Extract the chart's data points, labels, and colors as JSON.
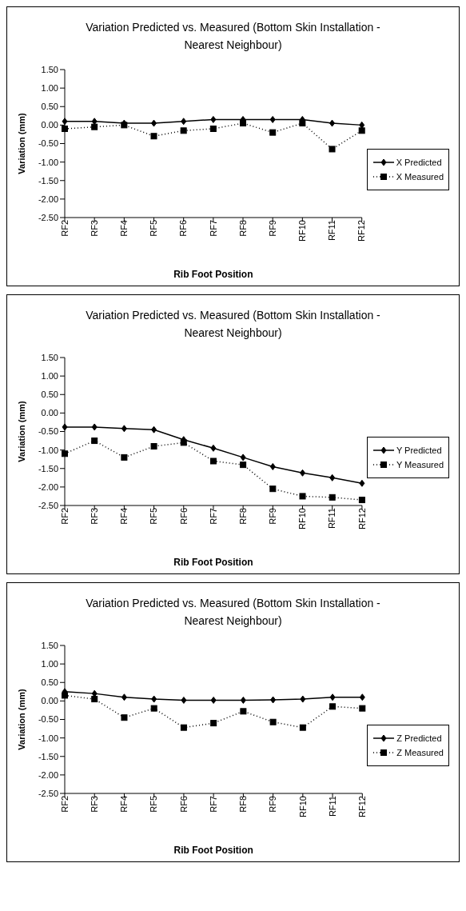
{
  "chart_data": [
    {
      "type": "line",
      "title": "Variation Predicted vs. Measured (Bottom Skin Installation - Nearest Neighbour)",
      "xlabel": "Rib Foot Position",
      "ylabel": "Variation (mm)",
      "categories": [
        "RF2",
        "RF3",
        "RF4",
        "RF5",
        "RF6",
        "RF7",
        "RF8",
        "RF9",
        "RF10",
        "RF11",
        "RF12"
      ],
      "series": [
        {
          "name": "X Predicted",
          "color": "#000000",
          "marker": "diamond",
          "line_style": "solid",
          "values": [
            0.1,
            0.1,
            0.05,
            0.05,
            0.1,
            0.15,
            0.15,
            0.15,
            0.15,
            0.05,
            0.0
          ]
        },
        {
          "name": "X Measured",
          "color": "#000000",
          "marker": "square",
          "line_style": "dotted",
          "values": [
            -0.1,
            -0.05,
            0.0,
            -0.3,
            -0.15,
            -0.1,
            0.05,
            -0.2,
            0.05,
            -0.65,
            -0.15
          ]
        }
      ],
      "ylim": [
        -2.5,
        1.5
      ],
      "yticks": [
        {
          "value": -2.5,
          "label": "-2.50"
        },
        {
          "value": -2,
          "label": "-2.00"
        },
        {
          "value": -1.5,
          "label": "-1.50"
        },
        {
          "value": -1,
          "label": "-1.00"
        },
        {
          "value": -0.5,
          "label": "-0.50"
        },
        {
          "value": 0,
          "label": "0.00"
        },
        {
          "value": 0.5,
          "label": "0.50"
        },
        {
          "value": 1,
          "label": "1.00"
        },
        {
          "value": 1.5,
          "label": "1.50"
        }
      ],
      "grid": false,
      "legend": "right"
    },
    {
      "type": "line",
      "title": "Variation Predicted vs. Measured (Bottom Skin Installation - Nearest Neighbour)",
      "xlabel": "Rib Foot Position",
      "ylabel": "Variation (mm)",
      "categories": [
        "RF2",
        "RF3",
        "RF4",
        "RF5",
        "RF6",
        "RF7",
        "RF8",
        "RF9",
        "RF10",
        "RF11",
        "RF12"
      ],
      "series": [
        {
          "name": "Y Predicted",
          "color": "#000000",
          "marker": "diamond",
          "line_style": "solid",
          "values": [
            -0.38,
            -0.38,
            -0.42,
            -0.45,
            -0.72,
            -0.95,
            -1.2,
            -1.45,
            -1.62,
            -1.75,
            -1.9
          ]
        },
        {
          "name": "Y Measured",
          "color": "#000000",
          "marker": "square",
          "line_style": "dotted",
          "values": [
            -1.1,
            -0.75,
            -1.2,
            -0.9,
            -0.8,
            -1.3,
            -1.4,
            -2.05,
            -2.25,
            -2.28,
            -2.35
          ]
        }
      ],
      "ylim": [
        -2.5,
        1.5
      ],
      "yticks": [
        {
          "value": -2.5,
          "label": "-2.50"
        },
        {
          "value": -2,
          "label": "-2.00"
        },
        {
          "value": -1.5,
          "label": "-1.50"
        },
        {
          "value": -1,
          "label": "-1.00"
        },
        {
          "value": -0.5,
          "label": "-0.50"
        },
        {
          "value": 0,
          "label": "0.00"
        },
        {
          "value": 0.5,
          "label": "0.50"
        },
        {
          "value": 1,
          "label": "1.00"
        },
        {
          "value": 1.5,
          "label": "1.50"
        }
      ],
      "grid": false,
      "legend": "right"
    },
    {
      "type": "line",
      "title": "Variation Predicted vs. Measured (Bottom Skin Installation - Nearest Neighbour)",
      "xlabel": "Rib Foot Position",
      "ylabel": "Variation (mm)",
      "categories": [
        "RF2",
        "RF3",
        "RF4",
        "RF5",
        "RF6",
        "RF7",
        "RF8",
        "RF9",
        "RF10",
        "RF11",
        "RF12"
      ],
      "series": [
        {
          "name": "Z Predicted",
          "color": "#000000",
          "marker": "diamond",
          "line_style": "solid",
          "values": [
            0.25,
            0.2,
            0.1,
            0.05,
            0.02,
            0.02,
            0.02,
            0.03,
            0.05,
            0.1,
            0.1
          ]
        },
        {
          "name": "Z Measured",
          "color": "#000000",
          "marker": "square",
          "line_style": "dotted",
          "values": [
            0.15,
            0.05,
            -0.45,
            -0.2,
            -0.72,
            -0.6,
            -0.28,
            -0.57,
            -0.72,
            -0.15,
            -0.2
          ]
        }
      ],
      "ylim": [
        -2.5,
        1.5
      ],
      "yticks": [
        {
          "value": -2.5,
          "label": "-2.50"
        },
        {
          "value": -2,
          "label": "-2.00"
        },
        {
          "value": -1.5,
          "label": "-1.50"
        },
        {
          "value": -1,
          "label": "-1.00"
        },
        {
          "value": -0.5,
          "label": "-0.50"
        },
        {
          "value": 0,
          "label": "0.00"
        },
        {
          "value": 0.5,
          "label": "0.50"
        },
        {
          "value": 1,
          "label": "1.00"
        },
        {
          "value": 1.5,
          "label": "1.50"
        }
      ],
      "grid": false,
      "legend": "right"
    }
  ]
}
